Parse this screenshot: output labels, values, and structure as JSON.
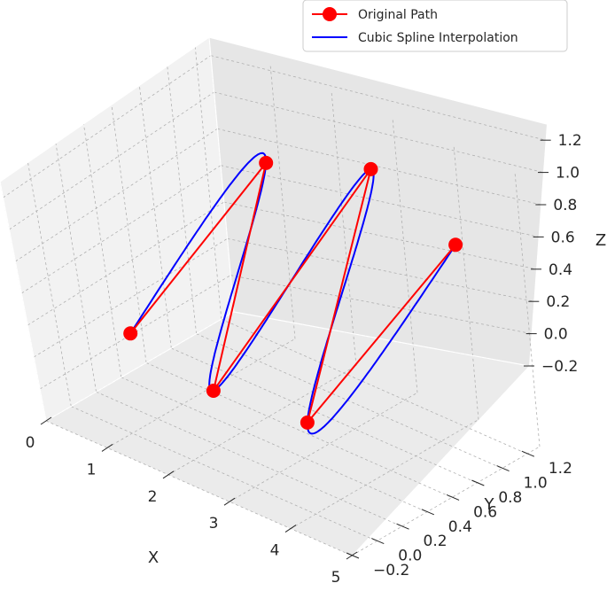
{
  "chart_data": {
    "type": "line3d",
    "title": "",
    "xlabel": "X",
    "ylabel": "Y",
    "zlabel": "Z",
    "xlim": [
      0,
      5
    ],
    "ylim": [
      -0.2,
      1.3
    ],
    "zlim": [
      -0.2,
      1.3
    ],
    "x_ticks": [
      "0",
      "1",
      "2",
      "3",
      "4",
      "5"
    ],
    "y_ticks": [
      "−0.2",
      "0.0",
      "0.2",
      "0.4",
      "0.6",
      "0.8",
      "1.0",
      "1.2"
    ],
    "z_ticks": [
      "−0.2",
      "0.0",
      "0.2",
      "0.4",
      "0.6",
      "0.8",
      "1.0",
      "1.2"
    ],
    "grid": true,
    "legend": "top-right",
    "series": [
      {
        "name": "Original Path",
        "style": "line-markers",
        "color": "#ff0000",
        "points": [
          {
            "x": 0,
            "y": 0.5,
            "z": 0.0
          },
          {
            "x": 1,
            "y": 1.2,
            "z": 0.8
          },
          {
            "x": 2,
            "y": 0.2,
            "z": 0.1
          },
          {
            "x": 3,
            "y": 1.1,
            "z": 1.1
          },
          {
            "x": 4,
            "y": 0.0,
            "z": 0.3
          },
          {
            "x": 5,
            "y": 0.8,
            "z": 1.1
          }
        ]
      },
      {
        "name": "Cubic Spline Interpolation",
        "style": "line",
        "color": "#0000ff"
      }
    ]
  }
}
